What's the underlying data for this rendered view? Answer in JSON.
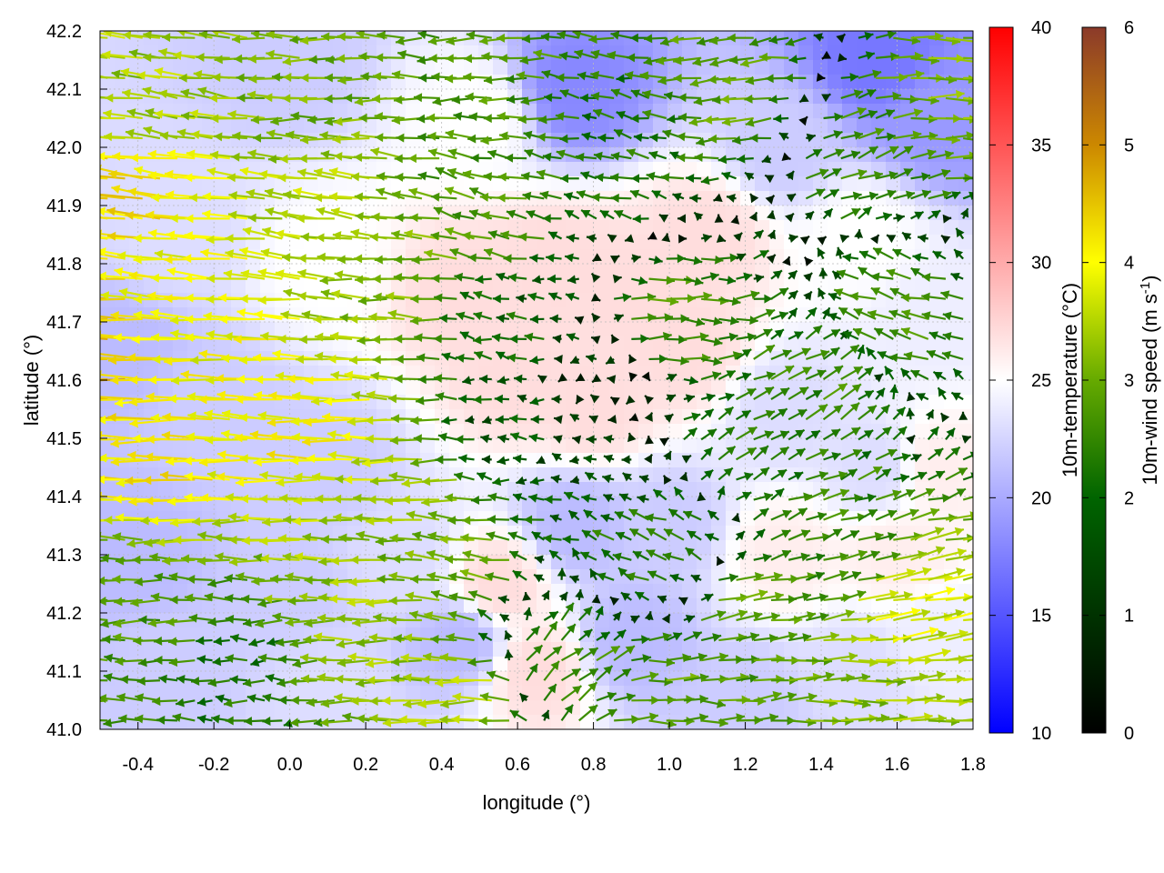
{
  "chart_data": {
    "type": "vector-field",
    "xlabel": "longitude (°)",
    "ylabel": "latitude (°)",
    "xlim": [
      -0.5,
      1.8
    ],
    "ylim": [
      41.0,
      42.2
    ],
    "xticks": [
      "-0.4",
      "-0.2",
      "0.0",
      "0.2",
      "0.4",
      "0.6",
      "0.8",
      "1.0",
      "1.2",
      "1.4",
      "1.6",
      "1.8"
    ],
    "xtick_values": [
      -0.4,
      -0.2,
      0.0,
      0.2,
      0.4,
      0.6,
      0.8,
      1.0,
      1.2,
      1.4,
      1.6,
      1.8
    ],
    "yticks": [
      "41.0",
      "41.1",
      "41.2",
      "41.3",
      "41.4",
      "41.5",
      "41.6",
      "41.7",
      "41.8",
      "41.9",
      "42.0",
      "42.1",
      "42.2"
    ],
    "ytick_values": [
      41.0,
      41.1,
      41.2,
      41.3,
      41.4,
      41.5,
      41.6,
      41.7,
      41.8,
      41.9,
      42.0,
      42.1,
      42.2
    ],
    "grid": true,
    "temperature_colorbar": {
      "label": "10m-temperature (°C)",
      "range": [
        10,
        40
      ],
      "ticks": [
        "10",
        "15",
        "20",
        "25",
        "30",
        "35",
        "40"
      ],
      "tick_values": [
        10,
        15,
        20,
        25,
        30,
        35,
        40
      ],
      "colors": [
        "#0000ff",
        "#ffffff",
        "#ff0000"
      ]
    },
    "wind_colorbar": {
      "label_main": "10m-wind speed (m s",
      "label_sup": "-1",
      "label_end": ")",
      "range": [
        0,
        6
      ],
      "ticks": [
        "0",
        "1",
        "2",
        "3",
        "4",
        "5",
        "6"
      ],
      "tick_values": [
        0,
        1,
        2,
        3,
        4,
        5,
        6
      ],
      "colors": [
        "#000000",
        "#006400",
        "#66aa00",
        "#ffff00",
        "#cc8800",
        "#8b3a2a"
      ]
    },
    "temperature_field": [
      [
        0.0,
        42.15,
        22
      ],
      [
        0.5,
        42.05,
        25
      ],
      [
        0.75,
        42.1,
        18
      ],
      [
        1.55,
        42.15,
        17
      ],
      [
        1.3,
        42.0,
        22
      ],
      [
        1.7,
        42.05,
        19
      ],
      [
        -0.3,
        41.85,
        23
      ],
      [
        0.1,
        41.8,
        25
      ],
      [
        0.45,
        41.75,
        27
      ],
      [
        0.7,
        41.8,
        27
      ],
      [
        0.9,
        41.75,
        27
      ],
      [
        1.1,
        41.85,
        27
      ],
      [
        1.5,
        41.85,
        25
      ],
      [
        1.7,
        41.7,
        24
      ],
      [
        -0.45,
        41.65,
        21
      ],
      [
        -0.2,
        41.55,
        22
      ],
      [
        0.1,
        41.45,
        22
      ],
      [
        0.6,
        41.6,
        27
      ],
      [
        0.8,
        41.55,
        27
      ],
      [
        1.05,
        41.65,
        27
      ],
      [
        1.3,
        41.55,
        23
      ],
      [
        1.55,
        41.45,
        23
      ],
      [
        1.7,
        41.45,
        26
      ],
      [
        -0.4,
        41.3,
        21
      ],
      [
        0.0,
        41.25,
        22
      ],
      [
        0.3,
        41.3,
        23
      ],
      [
        0.55,
        41.25,
        27
      ],
      [
        0.75,
        41.35,
        21
      ],
      [
        1.0,
        41.35,
        22
      ],
      [
        1.3,
        41.3,
        26
      ],
      [
        1.6,
        41.3,
        26
      ],
      [
        -0.3,
        41.1,
        22
      ],
      [
        0.1,
        41.05,
        23
      ],
      [
        0.45,
        41.15,
        21
      ],
      [
        0.65,
        41.1,
        27
      ],
      [
        0.9,
        41.15,
        21
      ],
      [
        1.2,
        41.05,
        22
      ],
      [
        1.5,
        41.1,
        23
      ],
      [
        1.7,
        41.15,
        24
      ]
    ],
    "wind_field": [
      [
        -0.5,
        41.6,
        -4.2,
        0.1
      ],
      [
        -0.3,
        41.5,
        -3.8,
        0.0
      ],
      [
        -0.1,
        41.6,
        -3.5,
        0.2
      ],
      [
        0.1,
        41.5,
        -3.6,
        0.1
      ],
      [
        0.3,
        41.4,
        -3.0,
        0.0
      ],
      [
        -0.4,
        41.9,
        -3.9,
        0.5
      ],
      [
        -0.2,
        41.8,
        -3.4,
        0.3
      ],
      [
        0.1,
        41.9,
        -3.0,
        0.4
      ],
      [
        0.3,
        41.8,
        -2.6,
        0.2
      ],
      [
        0.5,
        41.9,
        -2.0,
        0.5
      ],
      [
        -0.3,
        42.1,
        -2.8,
        0.4
      ],
      [
        0.1,
        42.1,
        -2.4,
        0.0
      ],
      [
        0.5,
        42.1,
        -2.0,
        0.0
      ],
      [
        0.9,
        42.0,
        -1.5,
        0.3
      ],
      [
        1.2,
        42.1,
        -2.2,
        -0.3
      ],
      [
        1.5,
        42.0,
        1.8,
        0.6
      ],
      [
        1.7,
        42.1,
        2.5,
        0.0
      ],
      [
        -0.4,
        41.2,
        -2.0,
        0.0
      ],
      [
        -0.1,
        41.1,
        -1.5,
        0.0
      ],
      [
        0.2,
        41.2,
        -2.8,
        0.0
      ],
      [
        0.4,
        41.3,
        -2.4,
        0.4
      ],
      [
        0.6,
        41.5,
        -1.0,
        0.1
      ],
      [
        0.8,
        41.6,
        -0.6,
        0.0
      ],
      [
        0.6,
        41.7,
        -1.2,
        0.2
      ],
      [
        1.0,
        41.7,
        2.0,
        0.0
      ],
      [
        1.2,
        41.5,
        1.4,
        0.8
      ],
      [
        1.4,
        41.6,
        1.5,
        1.0
      ],
      [
        1.6,
        41.7,
        -1.8,
        0.5
      ],
      [
        1.0,
        41.3,
        -1.6,
        0.6
      ],
      [
        1.2,
        41.2,
        2.2,
        0.4
      ],
      [
        1.4,
        41.3,
        1.7,
        0.5
      ],
      [
        1.6,
        41.2,
        3.2,
        0.6
      ],
      [
        0.5,
        41.05,
        -3.0,
        0.0
      ],
      [
        0.7,
        41.1,
        1.5,
        1.2
      ],
      [
        1.0,
        41.05,
        2.2,
        0.0
      ],
      [
        1.5,
        41.05,
        2.7,
        0.0
      ]
    ]
  }
}
